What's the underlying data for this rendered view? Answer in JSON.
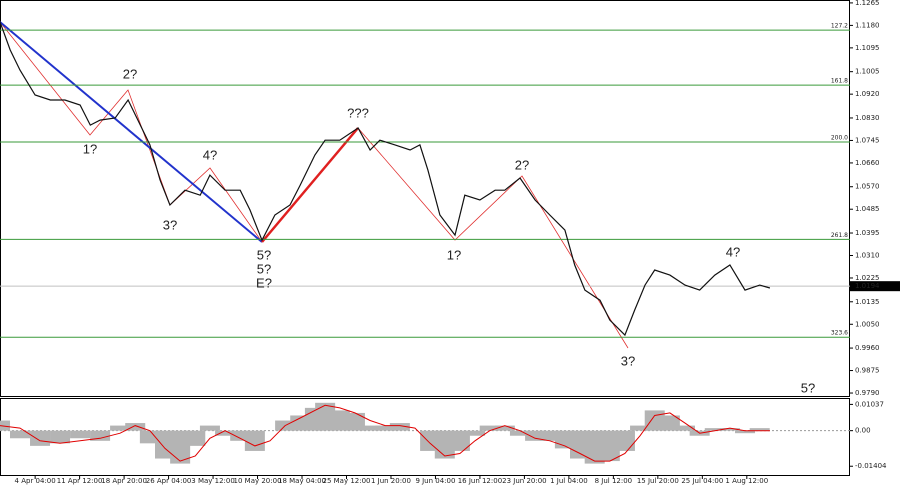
{
  "chart_data": [
    {
      "type": "line",
      "x": [
        -0.79,
        -0.56,
        -0.34,
        0,
        0.34,
        0.67,
        1.01,
        1.24,
        1.46,
        1.8,
        2.09,
        2.31,
        2.58,
        2.81,
        3.03,
        3.37,
        3.71,
        3.93,
        4.27,
        4.61,
        4.83,
        5.1,
        5.39,
        5.73,
        5.96,
        6.29,
        6.52,
        6.85,
        7.26,
        7.53,
        7.75,
        8.09,
        8.43,
        8.65,
        8.83,
        9.1,
        9.44,
        9.66,
        10.0,
        10.34,
        10.56,
        10.9,
        11.24,
        11.57,
        11.91,
        12.13,
        12.36,
        12.7,
        12.92,
        13.26,
        13.48,
        13.71,
        13.93,
        14.27,
        14.61,
        14.94,
        15.28,
        15.62,
        15.96,
        16.29,
        16.52
      ],
      "values": [
        1.1193,
        1.1087,
        1.1011,
        1.0917,
        1.0898,
        1.0898,
        1.0879,
        1.0803,
        1.0822,
        1.083,
        1.0898,
        1.0822,
        1.0728,
        1.0595,
        1.0501,
        1.0557,
        1.0538,
        1.0614,
        1.0557,
        1.0557,
        1.0482,
        1.0368,
        1.0463,
        1.0501,
        1.0576,
        1.069,
        1.0746,
        1.0746,
        1.0792,
        1.0709,
        1.0746,
        1.0728,
        1.0709,
        1.0728,
        1.0633,
        1.0463,
        1.0387,
        1.0538,
        1.052,
        1.0557,
        1.0557,
        1.0603,
        1.052,
        1.0463,
        1.0406,
        1.0274,
        1.0179,
        1.0141,
        1.0066,
        1.0009,
        1.0104,
        1.0198,
        1.0255,
        1.0236,
        1.0198,
        1.0179,
        1.0236,
        1.0274,
        1.0179,
        1.0198,
        1.0187
      ],
      "color": "#111111",
      "xlim": [
        -0.79,
        18.32
      ],
      "xticks": [
        {
          "value": 0,
          "label": "4 Apr 04:00"
        },
        {
          "value": 1,
          "label": "11 Apr 12:00"
        },
        {
          "value": 2,
          "label": "18 Apr 20:00"
        },
        {
          "value": 3,
          "label": "26 Apr 04:00"
        },
        {
          "value": 4,
          "label": "3 May 12:00"
        },
        {
          "value": 5,
          "label": "10 May 20:00"
        },
        {
          "value": 6,
          "label": "18 May 04:00"
        },
        {
          "value": 7,
          "label": "25 May 12:00"
        },
        {
          "value": 8,
          "label": "1 Jun 20:00"
        },
        {
          "value": 9,
          "label": "9 Jun 04:00"
        },
        {
          "value": 10,
          "label": "16 Jun 12:00"
        },
        {
          "value": 11,
          "label": "23 Jun 20:00"
        },
        {
          "value": 12,
          "label": "1 Jul 04:00"
        },
        {
          "value": 13,
          "label": "8 Jul 12:00"
        },
        {
          "value": 14,
          "label": "15 Jul 20:00"
        },
        {
          "value": 15,
          "label": "25 Jul 04:00"
        },
        {
          "value": 16,
          "label": "1 Aug 12:00"
        }
      ],
      "ylim": [
        0.9775,
        1.1276
      ],
      "yticks": [
        1.1265,
        {
          "value": 1.118,
          "label": "1.1180"
        },
        1.1095,
        1.1005,
        {
          "value": 1.092,
          "label": "1.0920"
        },
        {
          "value": 1.083,
          "label": "1.0830"
        },
        1.0745,
        {
          "value": 1.066,
          "label": "1.0660"
        },
        {
          "value": 1.057,
          "label": "1.0570"
        },
        1.0485,
        1.0395,
        {
          "value": 1.031,
          "label": "1.0310"
        },
        1.0225,
        1.0135,
        {
          "value": 1.005,
          "label": "1.0050"
        },
        {
          "value": 0.996,
          "label": "0.9960"
        },
        0.9875,
        {
          "value": 0.979,
          "label": "0.9790"
        }
      ],
      "levels": [
        {
          "value": 1.1162,
          "label": "127.2"
        },
        {
          "value": 1.0954,
          "label": "161.8"
        },
        {
          "value": 1.0739,
          "label": "200.0"
        },
        {
          "value": 1.0371,
          "label": "261.8"
        },
        {
          "value": 1.0001,
          "label": "323.6"
        }
      ],
      "level_color": "#3a9a3a",
      "last_price": 1.0194,
      "annotations": [
        {
          "text": "2?",
          "color": "#e02020"
        },
        {
          "text": "1?",
          "color": "#e02020"
        },
        {
          "text": "3?",
          "color": "#e02020"
        },
        {
          "text": "4?",
          "color": "#e02020"
        },
        {
          "text": "5?",
          "color": "#e02020"
        },
        {
          "text": "5?",
          "color": "#2020d0"
        },
        {
          "text": "E?",
          "color": "#e02020"
        },
        {
          "text": "???",
          "color": "#e02020"
        },
        {
          "text": "1?",
          "color": "#e02020"
        },
        {
          "text": "2?",
          "color": "#e02020"
        },
        {
          "text": "3?",
          "color": "#e02020"
        },
        {
          "text": "4?",
          "color": "#e02020"
        },
        {
          "text": "5?",
          "color": "#e02020"
        }
      ]
    },
    {
      "type": "bar",
      "x": [
        -0.79,
        -0.34,
        0.11,
        0.56,
        1.01,
        1.46,
        1.91,
        2.25,
        2.58,
        2.92,
        3.26,
        3.6,
        3.93,
        4.27,
        4.61,
        4.94,
        5.28,
        5.62,
        5.96,
        6.29,
        6.52,
        6.85,
        7.19,
        7.53,
        7.87,
        8.2,
        8.54,
        8.88,
        9.21,
        9.55,
        9.89,
        10.22,
        10.56,
        10.9,
        11.24,
        11.57,
        11.91,
        12.25,
        12.58,
        12.92,
        13.26,
        13.6,
        13.93,
        14.27,
        14.61,
        14.94,
        15.28,
        15.62,
        15.96,
        16.29,
        16.52
      ],
      "values": [
        0.004,
        -0.003,
        -0.006,
        -0.005,
        -0.003,
        -0.004,
        0.002,
        0.003,
        -0.005,
        -0.011,
        -0.013,
        -0.006,
        0.002,
        -0.002,
        -0.004,
        -0.008,
        0.0,
        0.004,
        0.006,
        0.009,
        0.011,
        0.008,
        0.007,
        0.002,
        0.002,
        0.003,
        0.0,
        -0.008,
        -0.011,
        -0.008,
        -0.002,
        0.002,
        0.002,
        -0.002,
        -0.004,
        -0.004,
        -0.007,
        -0.011,
        -0.013,
        -0.012,
        -0.008,
        0.002,
        0.008,
        0.006,
        0.002,
        -0.002,
        0.001,
        0.001,
        -0.001,
        0.001,
        0.0
      ],
      "color": "#b4b4b4",
      "signal": {
        "color": "#e00000",
        "values": [
          0.002,
          0.001,
          -0.004,
          -0.005,
          -0.004,
          -0.003,
          -0.001,
          0.002,
          0.0,
          -0.007,
          -0.012,
          -0.01,
          -0.003,
          0.0,
          -0.003,
          -0.006,
          -0.004,
          0.002,
          0.005,
          0.008,
          0.01,
          0.009,
          0.007,
          0.004,
          0.002,
          0.002,
          0.001,
          -0.005,
          -0.01,
          -0.009,
          -0.004,
          0.0,
          0.002,
          0.0,
          -0.003,
          -0.004,
          -0.006,
          -0.009,
          -0.012,
          -0.012,
          -0.009,
          -0.002,
          0.006,
          0.007,
          0.003,
          -0.001,
          0.0,
          0.001,
          0.0,
          0.0,
          0.0
        ]
      },
      "xlim": [
        -0.79,
        18.32
      ],
      "ylim": [
        -0.0175,
        0.0125
      ],
      "yticks": [
        0.01037,
        {
          "value": 0,
          "label": "0.00"
        },
        -0.01404
      ]
    }
  ]
}
